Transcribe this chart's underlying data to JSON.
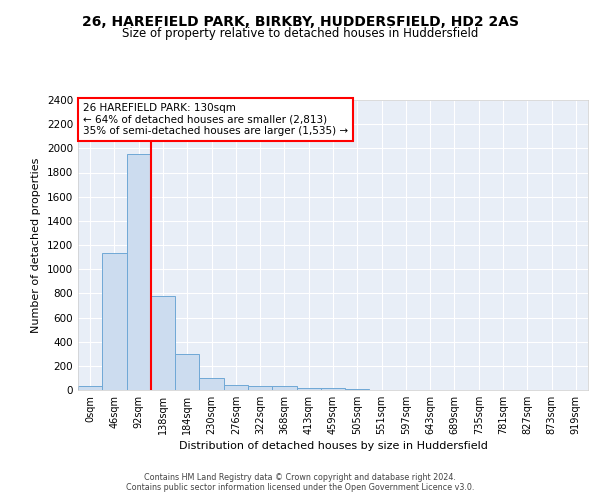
{
  "title1": "26, HAREFIELD PARK, BIRKBY, HUDDERSFIELD, HD2 2AS",
  "title2": "Size of property relative to detached houses in Huddersfield",
  "xlabel": "Distribution of detached houses by size in Huddersfield",
  "ylabel": "Number of detached properties",
  "footnote1": "Contains HM Land Registry data © Crown copyright and database right 2024.",
  "footnote2": "Contains public sector information licensed under the Open Government Licence v3.0.",
  "bin_labels": [
    "0sqm",
    "46sqm",
    "92sqm",
    "138sqm",
    "184sqm",
    "230sqm",
    "276sqm",
    "322sqm",
    "368sqm",
    "413sqm",
    "459sqm",
    "505sqm",
    "551sqm",
    "597sqm",
    "643sqm",
    "689sqm",
    "735sqm",
    "781sqm",
    "827sqm",
    "873sqm",
    "919sqm"
  ],
  "bar_values": [
    30,
    1130,
    1950,
    775,
    300,
    100,
    45,
    30,
    30,
    20,
    15,
    5,
    3,
    2,
    2,
    1,
    1,
    1,
    0,
    0,
    0
  ],
  "bar_color": "#ccdcef",
  "bar_edge_color": "#6fa8d6",
  "red_line_bin": 2.5,
  "annotation_line1": "26 HAREFIELD PARK: 130sqm",
  "annotation_line2": "← 64% of detached houses are smaller (2,813)",
  "annotation_line3": "35% of semi-detached houses are larger (1,535) →",
  "ylim": [
    0,
    2400
  ],
  "yticks": [
    0,
    200,
    400,
    600,
    800,
    1000,
    1200,
    1400,
    1600,
    1800,
    2000,
    2200,
    2400
  ],
  "background_color": "#e8eef7",
  "grid_color": "#ffffff",
  "fig_bg": "#ffffff"
}
